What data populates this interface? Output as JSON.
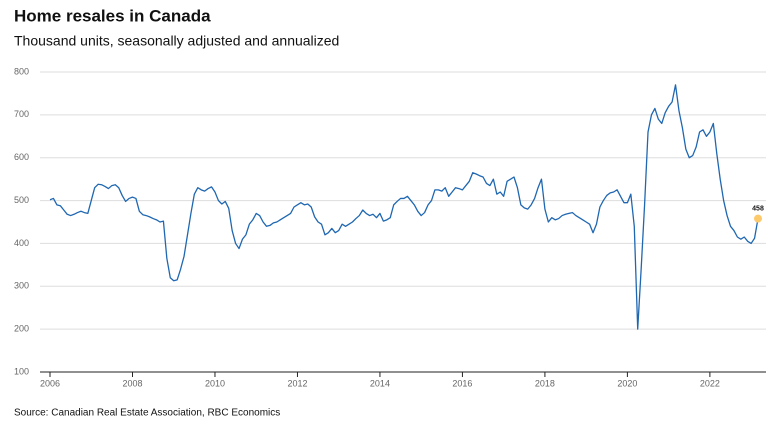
{
  "chart_data": {
    "type": "line",
    "title": "Home resales in Canada",
    "subtitle": "Thousand units, seasonally adjusted and annualized",
    "source": "Source: Canadian Real Estate Association, RBC Economics",
    "categories": [
      "2006",
      null,
      null,
      null,
      null,
      null,
      null,
      null,
      null,
      null,
      null,
      null,
      null,
      null,
      null,
      null,
      null,
      null,
      null,
      null,
      null,
      null,
      null,
      null,
      "2008",
      null,
      null,
      null,
      null,
      null,
      null,
      null,
      null,
      null,
      null,
      null,
      null,
      null,
      null,
      null,
      null,
      null,
      null,
      null,
      null,
      null,
      null,
      null,
      "2010",
      null,
      null,
      null,
      null,
      null,
      null,
      null,
      null,
      null,
      null,
      null,
      null,
      null,
      null,
      null,
      null,
      null,
      null,
      null,
      null,
      null,
      null,
      null,
      "2012",
      null,
      null,
      null,
      null,
      null,
      null,
      null,
      null,
      null,
      null,
      null,
      null,
      null,
      null,
      null,
      null,
      null,
      null,
      null,
      null,
      null,
      null,
      null,
      "2014",
      null,
      null,
      null,
      null,
      null,
      null,
      null,
      null,
      null,
      null,
      null,
      null,
      null,
      null,
      null,
      null,
      null,
      null,
      null,
      null,
      null,
      null,
      null,
      "2016",
      null,
      null,
      null,
      null,
      null,
      null,
      null,
      null,
      null,
      null,
      null,
      null,
      null,
      null,
      null,
      null,
      null,
      null,
      null,
      null,
      null,
      null,
      null,
      "2018",
      null,
      null,
      null,
      null,
      null,
      null,
      null,
      null,
      null,
      null,
      null,
      null,
      null,
      null,
      null,
      null,
      null,
      null,
      null,
      null,
      null,
      null,
      null,
      "2020",
      null,
      null,
      null,
      null,
      null,
      null,
      null,
      null,
      null,
      null,
      null,
      null,
      null,
      null,
      null,
      null,
      null,
      null,
      null,
      null,
      null,
      null,
      null,
      "2022",
      null,
      null,
      null,
      null,
      null,
      null,
      null,
      null,
      null,
      null,
      null,
      null,
      null,
      null
    ],
    "series": [
      {
        "name": "Home resales",
        "color": "#1f67b1",
        "values": [
          502,
          505,
          490,
          488,
          478,
          468,
          465,
          468,
          472,
          475,
          472,
          470,
          500,
          530,
          538,
          537,
          533,
          528,
          535,
          537,
          530,
          512,
          498,
          505,
          508,
          505,
          475,
          467,
          465,
          462,
          458,
          455,
          450,
          452,
          365,
          320,
          313,
          315,
          340,
          370,
          420,
          470,
          515,
          530,
          525,
          522,
          528,
          532,
          520,
          500,
          492,
          498,
          482,
          430,
          400,
          388,
          410,
          420,
          445,
          455,
          470,
          465,
          450,
          440,
          442,
          448,
          450,
          455,
          460,
          465,
          470,
          485,
          490,
          495,
          490,
          492,
          485,
          462,
          450,
          445,
          420,
          425,
          435,
          425,
          430,
          445,
          440,
          445,
          450,
          458,
          465,
          478,
          470,
          465,
          468,
          460,
          470,
          452,
          455,
          460,
          490,
          498,
          505,
          505,
          510,
          500,
          490,
          475,
          465,
          472,
          490,
          500,
          525,
          525,
          522,
          530,
          510,
          520,
          530,
          528,
          525,
          535,
          545,
          565,
          562,
          558,
          555,
          540,
          535,
          550,
          515,
          520,
          510,
          545,
          550,
          555,
          530,
          490,
          483,
          480,
          490,
          505,
          530,
          550,
          480,
          450,
          460,
          455,
          458,
          465,
          468,
          470,
          472,
          465,
          460,
          455,
          450,
          445,
          425,
          445,
          485,
          500,
          512,
          518,
          520,
          525,
          510,
          495,
          495,
          515,
          440,
          200,
          340,
          490,
          660,
          700,
          715,
          690,
          680,
          705,
          720,
          730,
          770,
          710,
          670,
          620,
          600,
          605,
          625,
          660,
          665,
          650,
          660,
          680,
          610,
          550,
          500,
          465,
          440,
          430,
          415,
          410,
          415,
          405,
          400,
          412,
          458
        ]
      }
    ],
    "highlight_color": "#fcc96b",
    "ylim": [
      100,
      800
    ],
    "yticks": [
      100,
      200,
      300,
      400,
      500,
      600,
      700,
      800
    ],
    "grid": true
  }
}
